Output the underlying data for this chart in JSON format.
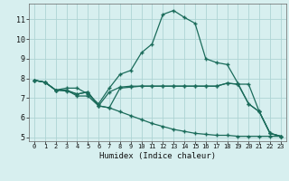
{
  "xlabel": "Humidex (Indice chaleur)",
  "bg_color": "#d7efef",
  "grid_color": "#aed4d4",
  "line_color": "#1a6b5a",
  "xlim": [
    -0.5,
    23.5
  ],
  "ylim": [
    4.8,
    11.8
  ],
  "yticks": [
    5,
    6,
    7,
    8,
    9,
    10,
    11
  ],
  "xticks": [
    0,
    1,
    2,
    3,
    4,
    5,
    6,
    7,
    8,
    9,
    10,
    11,
    12,
    13,
    14,
    15,
    16,
    17,
    18,
    19,
    20,
    21,
    22,
    23
  ],
  "series1_y": [
    7.9,
    7.8,
    7.4,
    7.5,
    7.5,
    7.2,
    6.7,
    7.5,
    8.2,
    8.4,
    9.3,
    9.75,
    11.25,
    11.45,
    11.1,
    10.8,
    9.0,
    8.8,
    8.7,
    7.75,
    6.7,
    6.3,
    5.2,
    5.05
  ],
  "series2_y": [
    7.9,
    7.8,
    7.4,
    7.35,
    7.2,
    7.3,
    6.6,
    6.5,
    7.5,
    7.55,
    7.6,
    7.6,
    7.6,
    7.6,
    7.6,
    7.6,
    7.6,
    7.6,
    7.75,
    7.7,
    7.7,
    6.3,
    5.2,
    5.05
  ],
  "series3_y": [
    7.9,
    7.8,
    7.4,
    7.4,
    7.2,
    7.3,
    6.6,
    7.3,
    7.55,
    7.6,
    7.6,
    7.6,
    7.6,
    7.6,
    7.6,
    7.6,
    7.6,
    7.6,
    7.75,
    7.7,
    6.7,
    6.3,
    5.2,
    5.05
  ],
  "series4_y": [
    7.9,
    7.8,
    7.4,
    7.4,
    7.1,
    7.1,
    6.6,
    6.5,
    6.3,
    6.1,
    5.9,
    5.7,
    5.55,
    5.4,
    5.3,
    5.2,
    5.15,
    5.1,
    5.1,
    5.05,
    5.05,
    5.05,
    5.05,
    5.05
  ]
}
